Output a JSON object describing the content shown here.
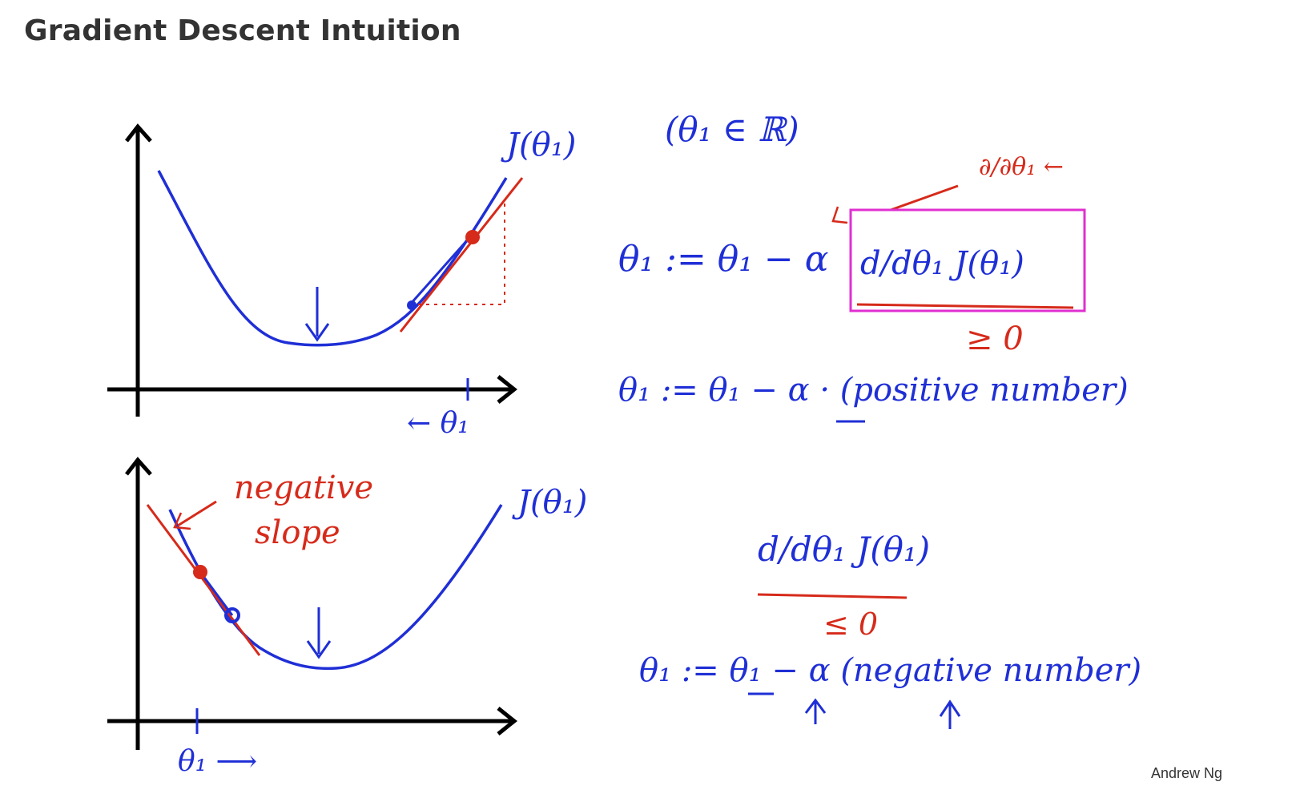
{
  "title": "Gradient Descent Intuition",
  "credit": "Andrew Ng",
  "colors": {
    "pen_blue": "#1f2fd6",
    "pen_red": "#d62a1a",
    "box_magenta": "#e02fd0",
    "axis": "#000000"
  },
  "top_panel": {
    "curve_label": "J(θ₁)",
    "axis_label": "← θ₁",
    "domain_note": "(θ₁ ∈ ℝ)",
    "derivative_hint": "∂/∂θ₁ ←",
    "update_rule": "θ₁ := θ₁ − α",
    "boxed_term": "d/dθ₁ J(θ₁)",
    "sign_note": "≥ 0",
    "update_result": "θ₁ := θ₁ − α · (positive number)"
  },
  "bottom_panel": {
    "curve_label": "J(θ₁)",
    "slope_note_line1": "negative",
    "slope_note_line2": "slope",
    "axis_label": "θ₁ ⟶",
    "derivative": "d/dθ₁ J(θ₁)",
    "sign_note": "≤ 0",
    "update_result": "θ₁ := θ₁ − α (negative number)"
  }
}
